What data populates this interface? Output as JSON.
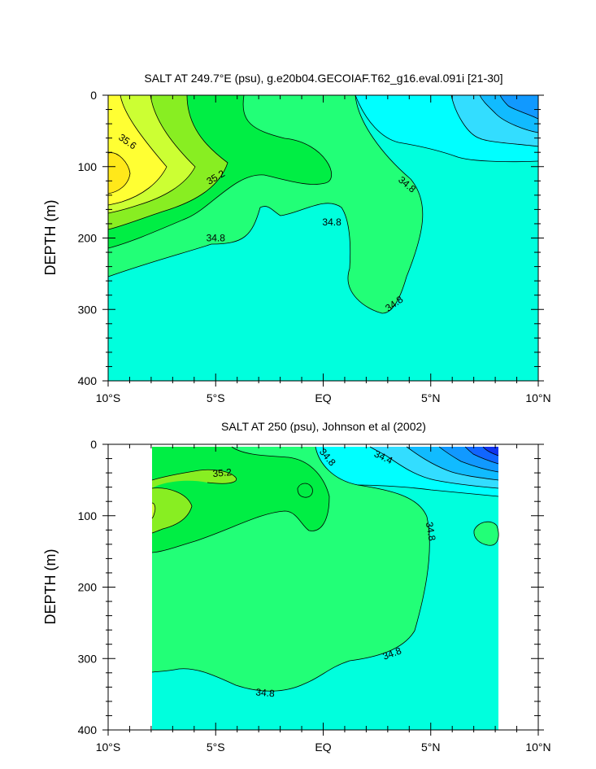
{
  "chart_data": [
    {
      "type": "contour",
      "title": "SALT AT 249.7°E (psu), g.e20b04.GECOIAF.T62_g16.eval.091i [21-30]",
      "ylabel": "DEPTH (m)",
      "xlabel": "",
      "x_ticks": [
        "10°S",
        "5°S",
        "EQ",
        "5°N",
        "10°N"
      ],
      "y_ticks": [
        "0",
        "100",
        "200",
        "300",
        "400"
      ],
      "xlim": [
        -10,
        10
      ],
      "ylim": [
        0,
        400
      ],
      "y_reversed": true,
      "contour_labels": [
        {
          "text": "35.6",
          "lat": -9.1,
          "depth": 65
        },
        {
          "text": "35.2",
          "lat": -5.0,
          "depth": 115
        },
        {
          "text": "34.8",
          "lat": -5.0,
          "depth": 200
        },
        {
          "text": "34.8",
          "lat": 0.4,
          "depth": 178
        },
        {
          "text": "34.8",
          "lat": 3.9,
          "depth": 125
        },
        {
          "text": "34.8",
          "lat": 3.3,
          "depth": 292
        }
      ]
    },
    {
      "type": "contour",
      "title": "SALT AT 250 (psu), Johnson et al (2002)",
      "ylabel": "DEPTH (m)",
      "xlabel": "",
      "x_ticks": [
        "10°S",
        "5°S",
        "EQ",
        "5°N",
        "10°N"
      ],
      "y_ticks": [
        "0",
        "100",
        "200",
        "300",
        "400"
      ],
      "xlim": [
        -10,
        10
      ],
      "ylim": [
        0,
        400
      ],
      "y_reversed": true,
      "data_xlim": [
        -8,
        8.2
      ],
      "contour_labels": [
        {
          "text": "35.2",
          "lat": -4.7,
          "depth": 40
        },
        {
          "text": "34.8",
          "lat": 0.2,
          "depth": 18
        },
        {
          "text": "34.4",
          "lat": 2.8,
          "depth": 18
        },
        {
          "text": "34.8",
          "lat": 5.0,
          "depth": 122
        },
        {
          "text": "34.8",
          "lat": 3.2,
          "depth": 293
        },
        {
          "text": "34.8",
          "lat": -2.7,
          "depth": 348
        }
      ]
    }
  ],
  "colors": {
    "aqua": "#00FFDD",
    "green_light": "#22FF77",
    "green": "#00EE44",
    "yellowgreen": "#88EE22",
    "lime_yellow": "#CCFF33",
    "yellow": "#FFFF33",
    "gold": "#FFE81A",
    "cyan": "#00FFFF",
    "sky": "#33DDFF",
    "sky2": "#11BBFF",
    "blue": "#1199FF",
    "deep_blue": "#1166FF",
    "navy": "#1133EE"
  }
}
